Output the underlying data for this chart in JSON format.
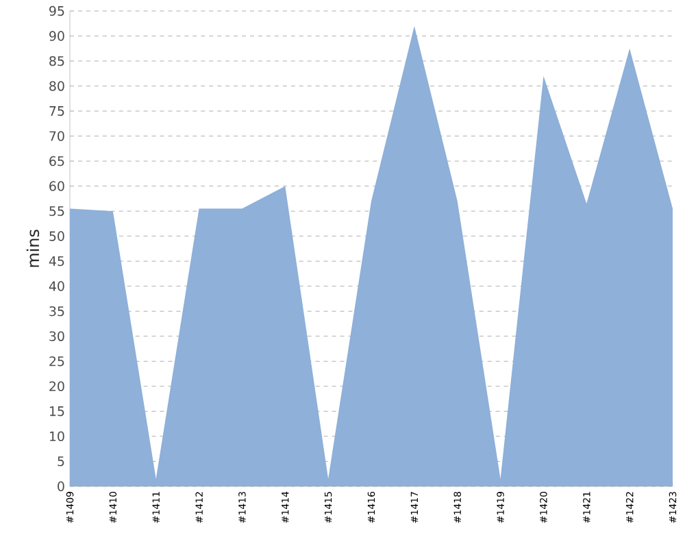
{
  "chart_data": {
    "type": "area",
    "ylabel": "mins",
    "categories": [
      "#1409",
      "#1410",
      "#1411",
      "#1412",
      "#1413",
      "#1414",
      "#1415",
      "#1416",
      "#1417",
      "#1418",
      "#1419",
      "#1420",
      "#1421",
      "#1422",
      "#1423"
    ],
    "values": [
      55.5,
      55,
      1.5,
      55.5,
      55.5,
      60,
      1.5,
      57,
      92,
      57,
      1.5,
      82,
      56.5,
      87.5,
      55.5
    ],
    "color": "#8eb0d9",
    "ylim": [
      0,
      95
    ],
    "yticks": [
      0,
      5,
      10,
      15,
      20,
      25,
      30,
      35,
      40,
      45,
      50,
      55,
      60,
      65,
      70,
      75,
      80,
      85,
      90,
      95
    ],
    "grid": "y"
  }
}
